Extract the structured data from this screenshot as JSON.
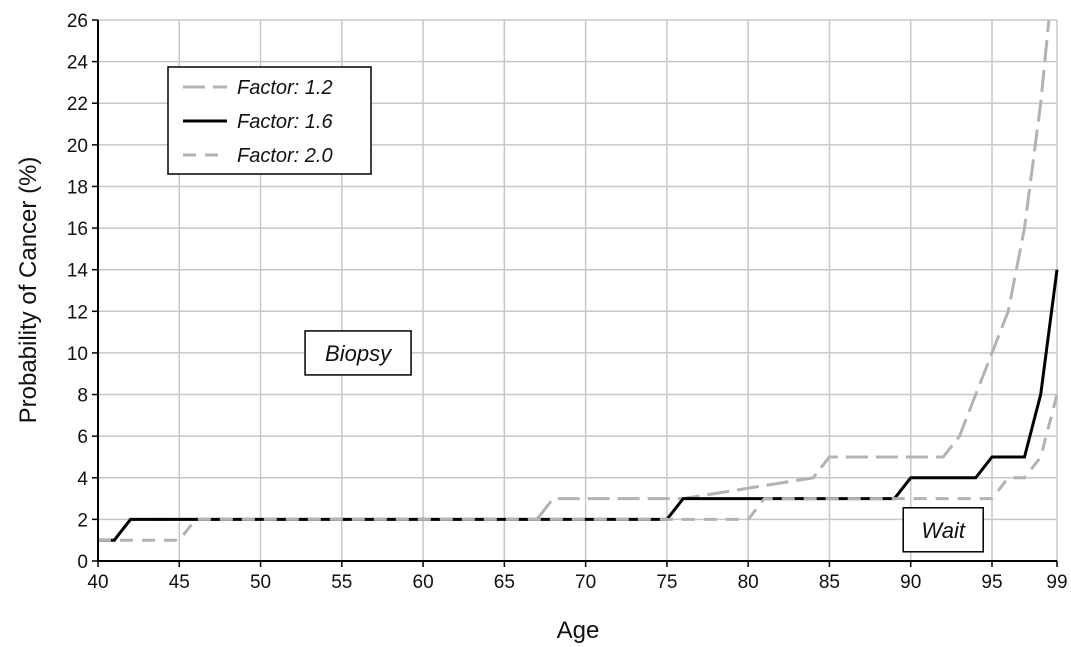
{
  "chart_data": {
    "type": "line",
    "title": "",
    "xlabel": "Age",
    "ylabel": "Probability of Cancer (%)",
    "xlim": [
      40,
      99
    ],
    "ylim": [
      0,
      26
    ],
    "xticks": [
      40,
      45,
      50,
      55,
      60,
      65,
      70,
      75,
      80,
      85,
      90,
      95,
      99
    ],
    "yticks": [
      0,
      2,
      4,
      6,
      8,
      10,
      12,
      14,
      16,
      18,
      20,
      22,
      24,
      26
    ],
    "grid": true,
    "legend_position": "top-left",
    "series": [
      {
        "name": "Factor: 1.2",
        "color": "#b3b3b3",
        "dash": "long-dash",
        "points": [
          [
            40,
            1
          ],
          [
            41,
            1
          ],
          [
            42,
            2
          ],
          [
            67,
            2
          ],
          [
            68,
            3
          ],
          [
            75,
            3
          ],
          [
            76,
            3
          ],
          [
            84,
            4
          ],
          [
            85,
            5
          ],
          [
            92,
            5
          ],
          [
            93,
            6
          ],
          [
            94,
            8
          ],
          [
            95,
            10
          ],
          [
            96,
            12
          ],
          [
            97,
            16
          ],
          [
            98,
            22
          ],
          [
            98.5,
            26
          ]
        ]
      },
      {
        "name": "Factor: 1.6",
        "color": "#000000",
        "dash": "solid",
        "points": [
          [
            40,
            1
          ],
          [
            41,
            1
          ],
          [
            42,
            2
          ],
          [
            75,
            2
          ],
          [
            76,
            3
          ],
          [
            89,
            3
          ],
          [
            90,
            4
          ],
          [
            94,
            4
          ],
          [
            95,
            5
          ],
          [
            97,
            5
          ],
          [
            98,
            8
          ],
          [
            99,
            14
          ]
        ]
      },
      {
        "name": "Factor: 2.0",
        "color": "#b3b3b3",
        "dash": "short-dash",
        "points": [
          [
            40,
            1
          ],
          [
            45,
            1
          ],
          [
            46,
            2
          ],
          [
            80,
            2
          ],
          [
            81,
            3
          ],
          [
            95,
            3
          ],
          [
            96,
            4
          ],
          [
            97,
            4
          ],
          [
            98,
            5
          ],
          [
            99,
            8
          ]
        ]
      }
    ],
    "annotations": [
      {
        "text": "Biopsy",
        "x": 56,
        "y": 10
      },
      {
        "text": "Wait",
        "x": 92,
        "y": 1.5
      }
    ]
  }
}
